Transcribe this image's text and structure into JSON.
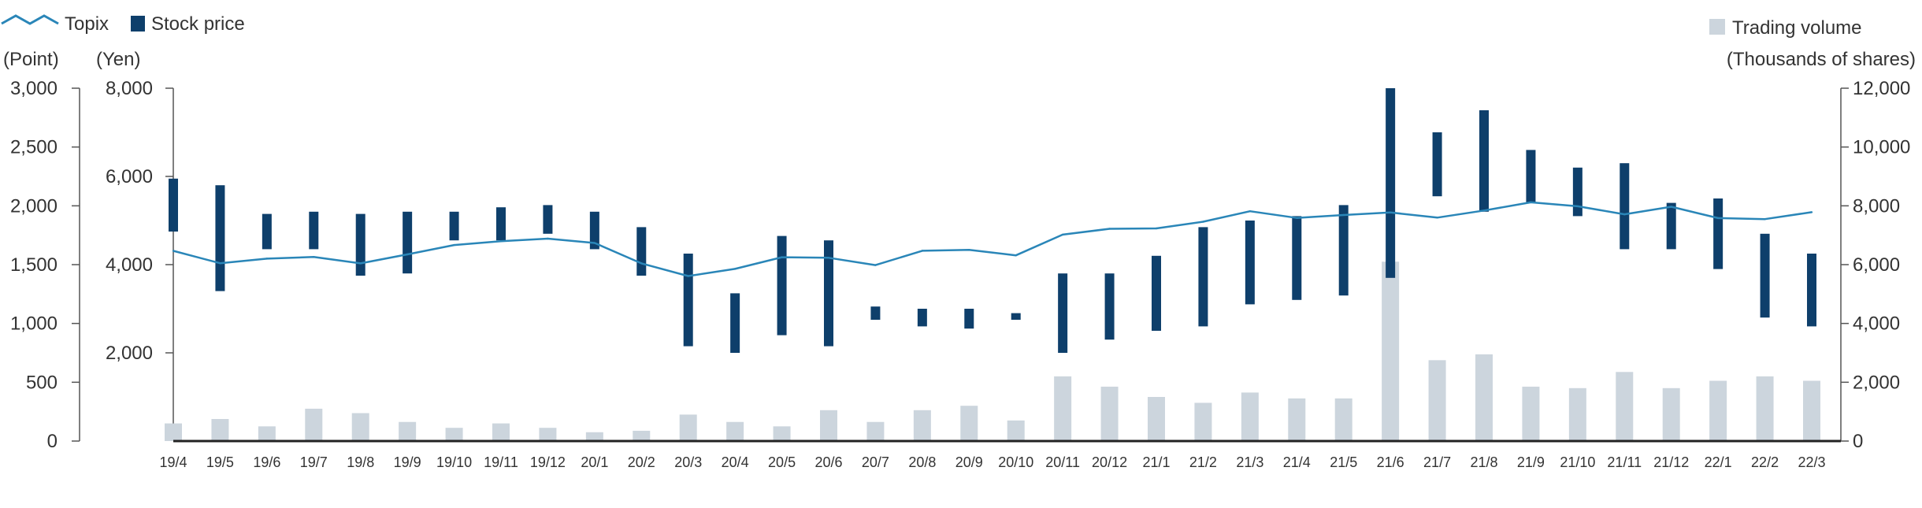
{
  "legend": {
    "topix": "Topix",
    "stock_price": "Stock price",
    "trading_volume": "Trading volume"
  },
  "units": {
    "left_outer": "(Point)",
    "left_inner": "(Yen)",
    "right": "(Thousands of shares)"
  },
  "colors": {
    "topix_line": "#2a86b8",
    "stock_price": "#0e3f6b",
    "volume": "#ccd5dd",
    "axis": "#555555",
    "baseline": "#222222"
  },
  "chart_data": {
    "type": "bar",
    "categories": [
      "19/4",
      "19/5",
      "19/6",
      "19/7",
      "19/8",
      "19/9",
      "19/10",
      "19/11",
      "19/12",
      "20/1",
      "20/2",
      "20/3",
      "20/4",
      "20/5",
      "20/6",
      "20/7",
      "20/8",
      "20/9",
      "20/10",
      "20/11",
      "20/12",
      "21/1",
      "21/2",
      "21/3",
      "21/4",
      "21/5",
      "21/6",
      "21/7",
      "21/8",
      "21/9",
      "21/10",
      "21/11",
      "21/12",
      "22/1",
      "22/2",
      "22/3"
    ],
    "axes": {
      "topix": {
        "min": 0,
        "max": 3000,
        "ticks": [
          0,
          500,
          1000,
          1500,
          2000,
          2500,
          3000
        ],
        "tick_labels": [
          "0",
          "500",
          "1,000",
          "1,500",
          "2,000",
          "2,500",
          "3,000"
        ]
      },
      "price": {
        "min": 0,
        "max": 8000,
        "ticks": [
          2000,
          4000,
          6000,
          8000
        ],
        "tick_labels": [
          "2,000",
          "4,000",
          "6,000",
          "8,000"
        ]
      },
      "volume": {
        "min": 0,
        "max": 12000,
        "ticks": [
          0,
          2000,
          4000,
          6000,
          8000,
          10000,
          12000
        ],
        "tick_labels": [
          "0",
          "2,000",
          "4,000",
          "6,000",
          "8,000",
          "10,000",
          "12,000"
        ]
      }
    },
    "series": [
      {
        "name": "Topix",
        "type": "line",
        "axis": "topix",
        "values": [
          1617,
          1512,
          1551,
          1565,
          1511,
          1587,
          1667,
          1699,
          1721,
          1684,
          1511,
          1403,
          1464,
          1563,
          1558,
          1496,
          1618,
          1625,
          1579,
          1755,
          1805,
          1808,
          1865,
          1954,
          1897,
          1922,
          1943,
          1900,
          1960,
          2030,
          1996,
          1928,
          1992,
          1896,
          1887,
          1946
        ]
      },
      {
        "name": "Stock price",
        "type": "range",
        "axis": "price",
        "low": [
          4750,
          3400,
          4350,
          4350,
          3750,
          3800,
          4550,
          4550,
          4700,
          4350,
          3750,
          2150,
          2000,
          2400,
          2150,
          2750,
          2600,
          2550,
          2750,
          2000,
          2300,
          2500,
          2600,
          3100,
          3200,
          3300,
          3700,
          5550,
          5200,
          5400,
          5100,
          4350,
          4350,
          3900,
          2800,
          2600
        ],
        "high": [
          5950,
          5800,
          5150,
          5200,
          5150,
          5200,
          5200,
          5300,
          5350,
          5200,
          4850,
          4250,
          3350,
          4650,
          4550,
          3050,
          3000,
          3000,
          2900,
          3800,
          3800,
          4200,
          4850,
          5000,
          5100,
          5350,
          8000,
          7000,
          7500,
          6600,
          6200,
          6300,
          5400,
          5500,
          4700,
          4250
        ]
      },
      {
        "name": "Trading volume",
        "type": "bar",
        "axis": "volume",
        "values": [
          600,
          750,
          500,
          1100,
          950,
          650,
          450,
          600,
          450,
          300,
          350,
          900,
          650,
          500,
          1050,
          650,
          1050,
          1200,
          700,
          2200,
          1850,
          1500,
          1300,
          1650,
          1450,
          1450,
          6100,
          2750,
          2950,
          1850,
          1800,
          2350,
          1800,
          2050,
          2200,
          2050
        ]
      }
    ]
  }
}
